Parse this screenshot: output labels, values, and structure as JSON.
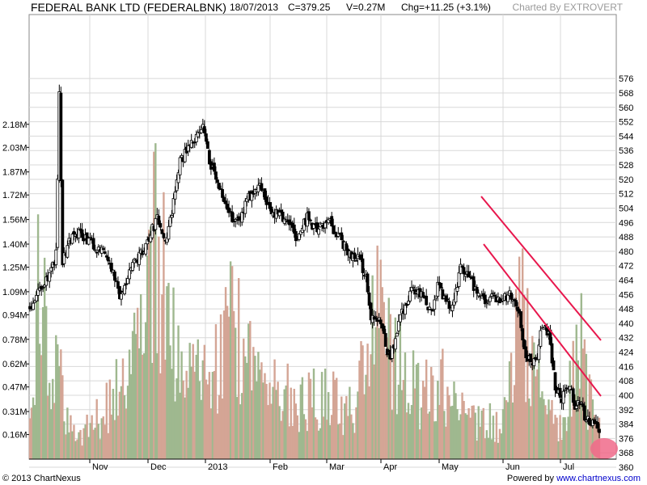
{
  "header": {
    "title": "FEDERAL BANK LTD (FEDERALBNK)",
    "date": "18/07/2013",
    "close": "C=379.25",
    "volume": "V=0.27M",
    "change": "Chg=+11.25 (+3.1%)",
    "credit": "Charted By EXTROVERT"
  },
  "footer": {
    "copyright": "© 2013 ChartNexus",
    "powered_prefix": "Powered by",
    "powered_link": "www.chartnexus.com"
  },
  "colors": {
    "candle": "#000000",
    "volume_up": "#9fb88f",
    "volume_down": "#d4a595",
    "trendline": "#e8174d",
    "marker": "#f06a8a",
    "grid": "#d8d8d8"
  },
  "chart_data": {
    "type": "candlestick",
    "x_labels": [
      "Nov",
      "Dec",
      "2013",
      "Feb",
      "Mar",
      "Apr",
      "May",
      "Jun",
      "Jul"
    ],
    "price_axis": {
      "ticks": [
        360,
        368,
        376,
        384,
        392,
        400,
        408,
        416,
        424,
        432,
        440,
        448,
        456,
        464,
        472,
        480,
        488,
        496,
        504,
        512,
        520,
        528,
        536,
        544,
        552,
        560,
        568,
        576
      ],
      "range": [
        350,
        576
      ]
    },
    "volume_axis": {
      "tick_labels": [
        "0.16M",
        "0.31M",
        "0.47M",
        "0.62M",
        "0.78M",
        "0.94M",
        "1.09M",
        "1.25M",
        "1.40M",
        "1.56M",
        "1.72M",
        "1.87M",
        "2.03M",
        "2.18M"
      ],
      "range_millions": [
        0,
        2.18
      ]
    },
    "price_path": [
      [
        0,
        448
      ],
      [
        6,
        458
      ],
      [
        12,
        466
      ],
      [
        16,
        478
      ],
      [
        18,
        566
      ],
      [
        20,
        474
      ],
      [
        24,
        485
      ],
      [
        30,
        490
      ],
      [
        38,
        484
      ],
      [
        45,
        480
      ],
      [
        50,
        470
      ],
      [
        55,
        455
      ],
      [
        62,
        470
      ],
      [
        70,
        482
      ],
      [
        78,
        498
      ],
      [
        84,
        486
      ],
      [
        92,
        530
      ],
      [
        100,
        540
      ],
      [
        106,
        552
      ],
      [
        110,
        530
      ],
      [
        114,
        520
      ],
      [
        122,
        500
      ],
      [
        128,
        496
      ],
      [
        134,
        510
      ],
      [
        140,
        518
      ],
      [
        146,
        505
      ],
      [
        152,
        500
      ],
      [
        158,
        498
      ],
      [
        164,
        485
      ],
      [
        170,
        500
      ],
      [
        176,
        490
      ],
      [
        182,
        498
      ],
      [
        188,
        490
      ],
      [
        195,
        480
      ],
      [
        202,
        475
      ],
      [
        206,
        465
      ],
      [
        209,
        443
      ],
      [
        215,
        442
      ],
      [
        218,
        427
      ],
      [
        221,
        422
      ],
      [
        224,
        432
      ],
      [
        228,
        445
      ],
      [
        234,
        460
      ],
      [
        240,
        455
      ],
      [
        246,
        445
      ],
      [
        250,
        460
      ],
      [
        255,
        452
      ],
      [
        258,
        448
      ],
      [
        264,
        470
      ],
      [
        270,
        464
      ],
      [
        276,
        452
      ],
      [
        282,
        455
      ],
      [
        288,
        452
      ],
      [
        294,
        455
      ],
      [
        300,
        445
      ],
      [
        304,
        422
      ],
      [
        310,
        418
      ],
      [
        314,
        440
      ],
      [
        318,
        435
      ],
      [
        322,
        405
      ],
      [
        326,
        398
      ],
      [
        330,
        406
      ],
      [
        334,
        395
      ],
      [
        338,
        394
      ],
      [
        341,
        386
      ],
      [
        344,
        386
      ],
      [
        349,
        379.25
      ]
    ],
    "volume_path": [
      [
        0,
        0.3
      ],
      [
        4,
        0.9
      ],
      [
        6,
        1.72
      ],
      [
        10,
        1.1
      ],
      [
        14,
        0.6
      ],
      [
        18,
        0.9
      ],
      [
        22,
        0.3
      ],
      [
        30,
        0.2
      ],
      [
        40,
        0.3
      ],
      [
        50,
        0.5
      ],
      [
        60,
        0.6
      ],
      [
        75,
        1.75
      ],
      [
        85,
        1.3
      ],
      [
        95,
        0.7
      ],
      [
        110,
        0.6
      ],
      [
        125,
        1.1
      ],
      [
        140,
        0.6
      ],
      [
        160,
        0.5
      ],
      [
        180,
        0.5
      ],
      [
        200,
        0.4
      ],
      [
        215,
        1.7
      ],
      [
        220,
        0.9
      ],
      [
        230,
        0.7
      ],
      [
        240,
        0.5
      ],
      [
        255,
        0.6
      ],
      [
        270,
        0.3
      ],
      [
        290,
        0.3
      ],
      [
        300,
        1.4
      ],
      [
        305,
        0.9
      ],
      [
        315,
        0.5
      ],
      [
        325,
        0.3
      ],
      [
        332,
        0.6
      ],
      [
        338,
        1.2
      ],
      [
        342,
        0.5
      ],
      [
        349,
        0.27
      ]
    ],
    "channel_upper": [
      [
        595,
        243
      ],
      [
        743,
        421
      ]
    ],
    "channel_lower": [
      [
        598,
        302
      ],
      [
        743,
        490
      ]
    ]
  }
}
